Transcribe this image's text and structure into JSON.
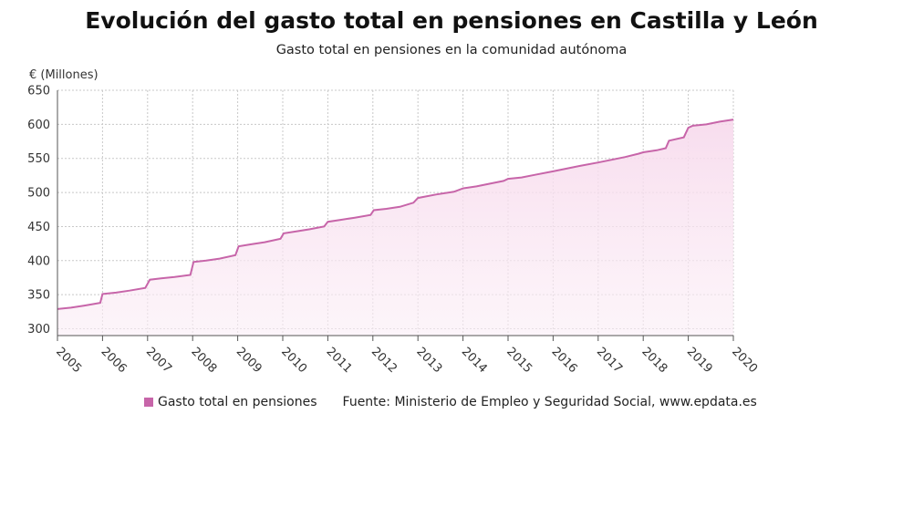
{
  "chart_data": {
    "type": "area",
    "title": "Evolución del gasto total en pensiones en Castilla y León",
    "subtitle": "Gasto total en pensiones en la comunidad autónoma",
    "ylabel": "€ (Millones)",
    "xlabel": "",
    "ylim": [
      290,
      650
    ],
    "yticks": [
      300,
      350,
      400,
      450,
      500,
      550,
      600,
      650
    ],
    "xlim": [
      2005,
      2020
    ],
    "xticks": [
      "2005",
      "2006",
      "2007",
      "2008",
      "2009",
      "2010",
      "2011",
      "2012",
      "2013",
      "2014",
      "2015",
      "2016",
      "2017",
      "2018",
      "2019",
      "2020"
    ],
    "grid": true,
    "legend_position": "bottom",
    "series": [
      {
        "name": "Gasto total en pensiones",
        "color": "#c765a9",
        "x": [
          2005.0,
          2005.3,
          2005.6,
          2005.95,
          2006.0,
          2006.3,
          2006.6,
          2006.95,
          2007.05,
          2007.3,
          2007.6,
          2007.95,
          2008.02,
          2008.3,
          2008.6,
          2008.95,
          2009.02,
          2009.3,
          2009.6,
          2009.95,
          2010.02,
          2010.3,
          2010.6,
          2010.92,
          2011.0,
          2011.3,
          2011.6,
          2011.95,
          2012.02,
          2012.3,
          2012.6,
          2012.9,
          2013.0,
          2013.4,
          2013.8,
          2014.0,
          2014.3,
          2014.6,
          2014.9,
          2015.0,
          2015.3,
          2015.6,
          2016.0,
          2016.3,
          2016.6,
          2017.0,
          2017.3,
          2017.6,
          2017.9,
          2018.0,
          2018.3,
          2018.5,
          2018.57,
          2018.9,
          2019.0,
          2019.1,
          2019.4,
          2019.7,
          2020.0
        ],
        "values": [
          329,
          331,
          334,
          338,
          351,
          353,
          356,
          360,
          372,
          374,
          376,
          379,
          398,
          400,
          403,
          408,
          421,
          424,
          427,
          432,
          440,
          443,
          446,
          450,
          457,
          460,
          463,
          467,
          474,
          476,
          479,
          485,
          492,
          497,
          501,
          506,
          509,
          513,
          517,
          520,
          522,
          526,
          531,
          535,
          539,
          544,
          548,
          552,
          557,
          559,
          562,
          565,
          576,
          581,
          595,
          598,
          600,
          604,
          607
        ]
      }
    ]
  },
  "legend": {
    "series_label": "Gasto total en pensiones",
    "source": "Fuente: Ministerio de Empleo y Seguridad Social, www.epdata.es"
  }
}
